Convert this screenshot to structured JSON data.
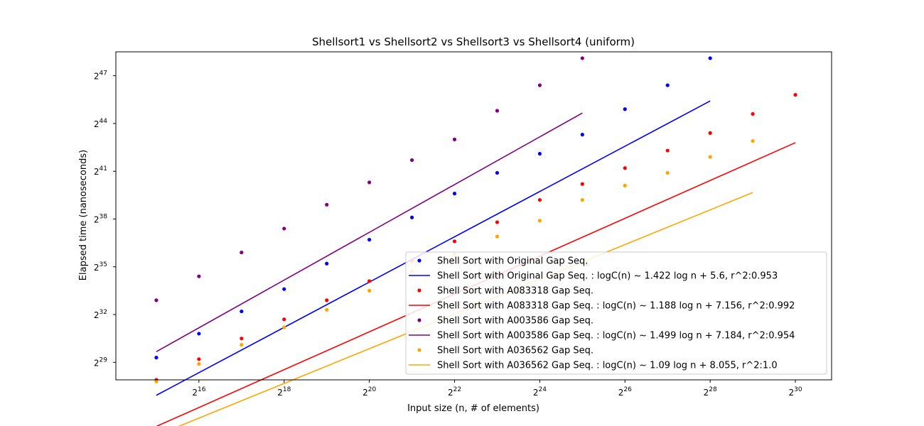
{
  "chart_data": {
    "type": "scatter",
    "title": "Shellsort1 vs Shellsort2 vs Shellsort3 vs Shellsort4 (uniform)",
    "xlabel": "Input size (n, # of elements)",
    "ylabel": "Elapsed time (nanoseconds)",
    "x_scale": "log2",
    "y_scale": "log2",
    "x_axis_range_log2": [
      14.05,
      30.85
    ],
    "y_axis_range_log2": [
      27.9,
      48.5
    ],
    "x_ticks": [
      {
        "base": "2",
        "exp": "16",
        "value": 16
      },
      {
        "base": "2",
        "exp": "18",
        "value": 18
      },
      {
        "base": "2",
        "exp": "20",
        "value": 20
      },
      {
        "base": "2",
        "exp": "22",
        "value": 22
      },
      {
        "base": "2",
        "exp": "24",
        "value": 24
      },
      {
        "base": "2",
        "exp": "26",
        "value": 26
      },
      {
        "base": "2",
        "exp": "28",
        "value": 28
      },
      {
        "base": "2",
        "exp": "30",
        "value": 30
      }
    ],
    "y_ticks": [
      {
        "base": "2",
        "exp": "29",
        "value": 29
      },
      {
        "base": "2",
        "exp": "32",
        "value": 32
      },
      {
        "base": "2",
        "exp": "35",
        "value": 35
      },
      {
        "base": "2",
        "exp": "38",
        "value": 38
      },
      {
        "base": "2",
        "exp": "41",
        "value": 41
      },
      {
        "base": "2",
        "exp": "44",
        "value": 44
      },
      {
        "base": "2",
        "exp": "47",
        "value": 47
      }
    ],
    "grid": false,
    "legend_position": "lower-right",
    "series": [
      {
        "name": "Shell Sort with Original Gap Seq.",
        "fit_label": "Shell Sort with Original Gap Seq. : logC(n) ~ 1.422 log n  + 5.6, r^2:0.953",
        "color": "#0000ff",
        "x_log2": [
          15,
          16,
          17,
          18,
          19,
          20,
          21,
          22,
          23,
          24,
          25,
          26,
          27,
          28
        ],
        "y_log2": [
          29.3,
          30.8,
          32.2,
          33.6,
          35.2,
          36.7,
          38.1,
          39.6,
          40.9,
          42.1,
          43.3,
          44.9,
          46.4,
          48.1
        ],
        "fit": {
          "slope": 1.422,
          "intercept": 5.6,
          "x_range": [
            15,
            28
          ]
        }
      },
      {
        "name": "Shell Sort with A083318 Gap Seq.",
        "fit_label": "Shell Sort with A083318 Gap Seq. : logC(n) ~ 1.188 log n  + 7.156, r^2:0.992",
        "color": "#ff0000",
        "x_log2": [
          15,
          16,
          17,
          18,
          19,
          20,
          21,
          22,
          23,
          24,
          25,
          26,
          27,
          28,
          29,
          30
        ],
        "y_log2": [
          27.9,
          29.2,
          30.5,
          31.7,
          32.9,
          34.1,
          35.4,
          36.6,
          37.8,
          39.2,
          40.2,
          41.2,
          42.3,
          43.4,
          44.6,
          45.8
        ],
        "fit": {
          "slope": 1.188,
          "intercept": 7.156,
          "x_range": [
            15,
            30
          ]
        }
      },
      {
        "name": "Shell Sort with A003586 Gap Seq.",
        "fit_label": "Shell Sort with A003586 Gap Seq. : logC(n) ~ 1.499 log n  + 7.184, r^2:0.954",
        "color": "#800080",
        "x_log2": [
          15,
          16,
          17,
          18,
          19,
          20,
          21,
          22,
          23,
          24,
          25
        ],
        "y_log2": [
          32.9,
          34.4,
          35.9,
          37.4,
          38.9,
          40.3,
          41.7,
          43.0,
          44.8,
          46.4,
          48.1
        ],
        "fit": {
          "slope": 1.499,
          "intercept": 7.184,
          "x_range": [
            15,
            25
          ]
        }
      },
      {
        "name": "Shell Sort with A036562 Gap Seq.",
        "fit_label": "Shell Sort with A036562 Gap Seq. : logC(n) ~ 1.09 log n  + 8.055, r^2:1.0",
        "color": "#ffa500",
        "x_log2": [
          15,
          16,
          17,
          18,
          19,
          20,
          21,
          22,
          23,
          24,
          25,
          26,
          27,
          28,
          29
        ],
        "y_log2": [
          27.8,
          28.9,
          30.1,
          31.2,
          32.3,
          33.5,
          34.7,
          35.8,
          36.9,
          37.9,
          39.2,
          40.1,
          40.9,
          41.9,
          42.9
        ],
        "fit": {
          "slope": 1.09,
          "intercept": 8.055,
          "x_range": [
            15,
            29
          ]
        }
      }
    ]
  }
}
